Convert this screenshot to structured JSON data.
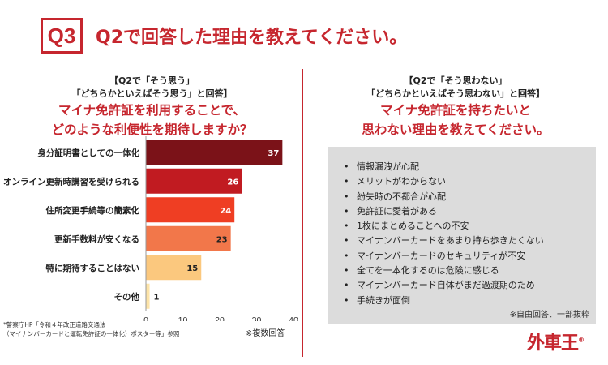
{
  "header": {
    "badge": "Q3",
    "title": "Q2で回答した理由を教えてください。"
  },
  "left": {
    "condition_line1": "【Q2で「そう思う」",
    "condition_line2": "「どちらかといえばそう思う」と回答】",
    "question_line1": "マイナ免許証を利用することで、",
    "question_line2": "どのような利便性を期待しますか？"
  },
  "chart_data": {
    "type": "bar",
    "orientation": "horizontal",
    "categories": [
      "身分証明書としての一体化",
      "オンライン更新時講習を受けられる",
      "住所変更手続等の簡素化",
      "更新手数料が安くなる",
      "特に期待することはない",
      "その他"
    ],
    "values": [
      37,
      26,
      24,
      23,
      15,
      1
    ],
    "xlim": [
      0,
      40
    ],
    "xticks": [
      0,
      10,
      20,
      30,
      40
    ],
    "bar_colors": [
      "#7b1218",
      "#c11b21",
      "#ef3e23",
      "#f2774a",
      "#fbc87e",
      "#fde4a8"
    ],
    "value_label_colors": [
      "#ffffff",
      "#ffffff",
      "#ffffff",
      "#222222",
      "#222222",
      "#222222"
    ],
    "grid": false
  },
  "notes": {
    "source_line1": "*警察庁HP「令和４年改正道路交通法",
    "source_line2": "（マイナンバーカードと運転免許証の一体化）ポスター等」参照",
    "multi": "※複数回答"
  },
  "right": {
    "condition_line1": "【Q2で「そう思わない」",
    "condition_line2": "「どちらかといえばそう思わない」と回答】",
    "question_line1": "マイナ免許証を持ちたいと",
    "question_line2": "思わない理由を教えてください。",
    "reasons": [
      "情報漏洩が心配",
      "メリットがわからない",
      "紛失時の不都合が心配",
      "免許証に愛着がある",
      "1枚にまとめることへの不安",
      "マイナンバーカードをあまり持ち歩きたくない",
      "マイナンバーカードのセキュリティが不安",
      "全てを一本化するのは危険に感じる",
      "マイナンバーカード自体がまだ過渡期のため",
      "手続きが面倒"
    ],
    "free_note": "※自由回答、一部抜粋"
  },
  "logo": {
    "text": "外車王",
    "mark": "®"
  },
  "colors": {
    "accent": "#c6262e",
    "panel": "#dcdcdc"
  }
}
